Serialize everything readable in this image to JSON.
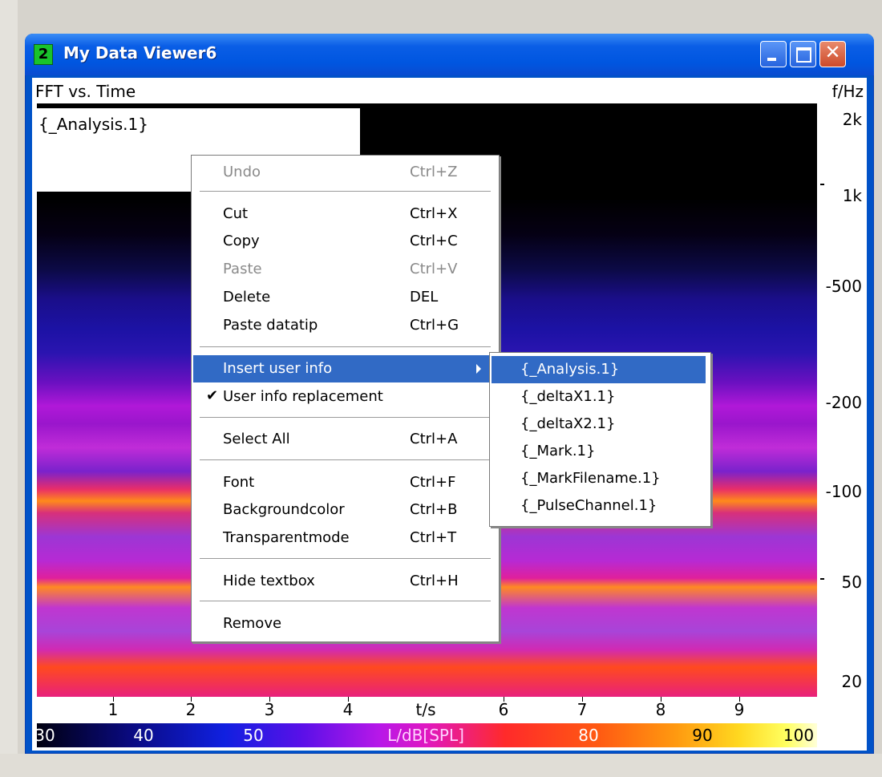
{
  "window": {
    "icon_label": "2",
    "title": "My Data Viewer6",
    "close_glyph": "✕"
  },
  "plot": {
    "title": "FFT vs. Time",
    "freq_unit": "f/Hz",
    "freq_ticks": [
      "2k",
      "1k",
      "-500",
      "-200",
      "-100",
      "50",
      "20"
    ],
    "time_ticks": [
      "1",
      "2",
      "3",
      "4",
      "t/s",
      "6",
      "7",
      "8",
      "9"
    ],
    "colorbar_labels": [
      "30",
      "40",
      "50",
      "L/dB[SPL]",
      "80",
      "90",
      "100"
    ]
  },
  "textbox": {
    "value": "{_Analysis.1}"
  },
  "context_menu": {
    "items": [
      {
        "label": "Undo",
        "accel": "Ctrl+Z"
      },
      {
        "label": "Cut",
        "accel": "Ctrl+X"
      },
      {
        "label": "Copy",
        "accel": "Ctrl+C"
      },
      {
        "label": "Paste",
        "accel": "Ctrl+V"
      },
      {
        "label": "Delete",
        "accel": "DEL"
      },
      {
        "label": "Paste datatip",
        "accel": "Ctrl+G"
      },
      {
        "label": "Insert user info",
        "accel": ""
      },
      {
        "label": "User info replacement",
        "accel": ""
      },
      {
        "label": "Select All",
        "accel": "Ctrl+A"
      },
      {
        "label": "Font",
        "accel": "Ctrl+F"
      },
      {
        "label": "Backgroundcolor",
        "accel": "Ctrl+B"
      },
      {
        "label": "Transparentmode",
        "accel": "Ctrl+T"
      },
      {
        "label": "Hide textbox",
        "accel": "Ctrl+H"
      },
      {
        "label": "Remove",
        "accel": ""
      }
    ],
    "check_glyph": "✔"
  },
  "submenu": {
    "items": [
      "{_Analysis.1}",
      "{_deltaX1.1}",
      "{_deltaX2.1}",
      "{_Mark.1}",
      "{_MarkFilename.1}",
      "{_PulseChannel.1}"
    ]
  }
}
